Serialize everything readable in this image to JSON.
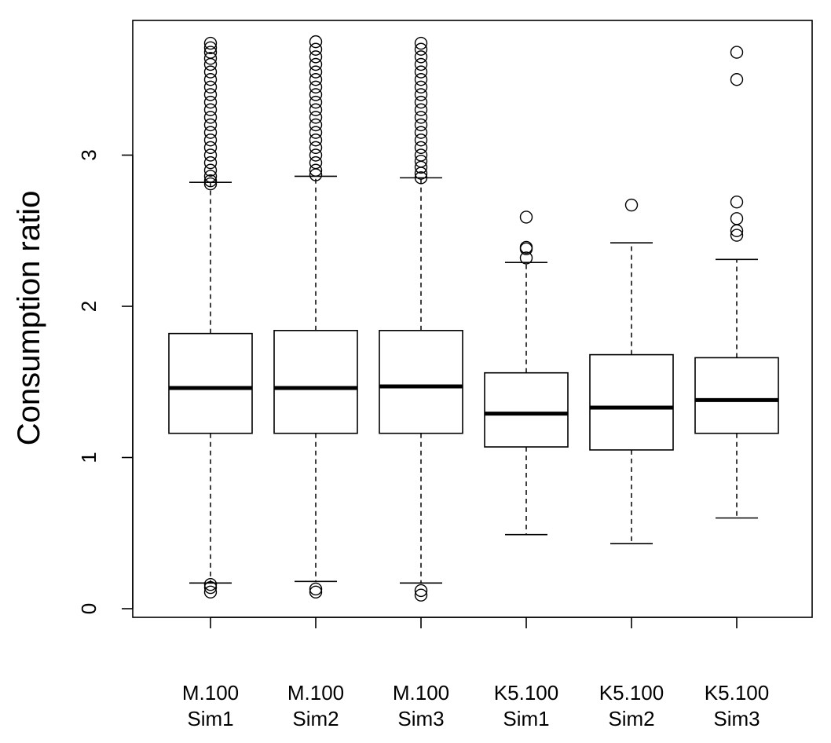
{
  "chart_data": {
    "type": "boxplot",
    "title": "",
    "xlabel": "",
    "ylabel": "Consumption ratio",
    "ylim": [
      -0.05,
      3.9
    ],
    "yticks": [
      0,
      1,
      2,
      3
    ],
    "grid": false,
    "legend": "none",
    "colors": {
      "stroke": "#000000",
      "fill": "#ffffff",
      "background": "#ffffff"
    },
    "categories": [
      {
        "line1": "M.100",
        "line2": "Sim1"
      },
      {
        "line1": "M.100",
        "line2": "Sim2"
      },
      {
        "line1": "M.100",
        "line2": "Sim3"
      },
      {
        "line1": "K5.100",
        "line2": "Sim1"
      },
      {
        "line1": "K5.100",
        "line2": "Sim2"
      },
      {
        "line1": "K5.100",
        "line2": "Sim3"
      }
    ],
    "boxes": [
      {
        "whisker_low": 0.17,
        "q1": 1.16,
        "median": 1.46,
        "q3": 1.82,
        "whisker_high": 2.82,
        "outliers": [
          0.11,
          0.14,
          0.16,
          2.81,
          2.83,
          2.86,
          2.9,
          2.95,
          3.0,
          3.05,
          3.1,
          3.15,
          3.2,
          3.25,
          3.3,
          3.35,
          3.4,
          3.45,
          3.5,
          3.55,
          3.6,
          3.64,
          3.68,
          3.71,
          3.74
        ]
      },
      {
        "whisker_low": 0.18,
        "q1": 1.16,
        "median": 1.46,
        "q3": 1.84,
        "whisker_high": 2.86,
        "outliers": [
          0.11,
          0.13,
          2.87,
          2.9,
          2.95,
          3.0,
          3.05,
          3.1,
          3.15,
          3.2,
          3.25,
          3.3,
          3.35,
          3.4,
          3.45,
          3.5,
          3.55,
          3.6,
          3.65,
          3.7,
          3.75
        ]
      },
      {
        "whisker_low": 0.17,
        "q1": 1.16,
        "median": 1.47,
        "q3": 1.84,
        "whisker_high": 2.85,
        "outliers": [
          0.09,
          0.12,
          2.85,
          2.88,
          2.92,
          2.96,
          3.0,
          3.05,
          3.1,
          3.15,
          3.2,
          3.25,
          3.3,
          3.35,
          3.4,
          3.45,
          3.5,
          3.55,
          3.6,
          3.65,
          3.7,
          3.74
        ]
      },
      {
        "whisker_low": 0.49,
        "q1": 1.07,
        "median": 1.29,
        "q3": 1.56,
        "whisker_high": 2.29,
        "outliers": [
          2.32,
          2.38,
          2.39,
          2.59
        ]
      },
      {
        "whisker_low": 0.43,
        "q1": 1.05,
        "median": 1.33,
        "q3": 1.68,
        "whisker_high": 2.42,
        "outliers": [
          2.67
        ]
      },
      {
        "whisker_low": 0.6,
        "q1": 1.16,
        "median": 1.38,
        "q3": 1.66,
        "whisker_high": 2.31,
        "outliers": [
          2.47,
          2.5,
          2.58,
          2.69,
          3.5,
          3.68
        ]
      }
    ]
  }
}
